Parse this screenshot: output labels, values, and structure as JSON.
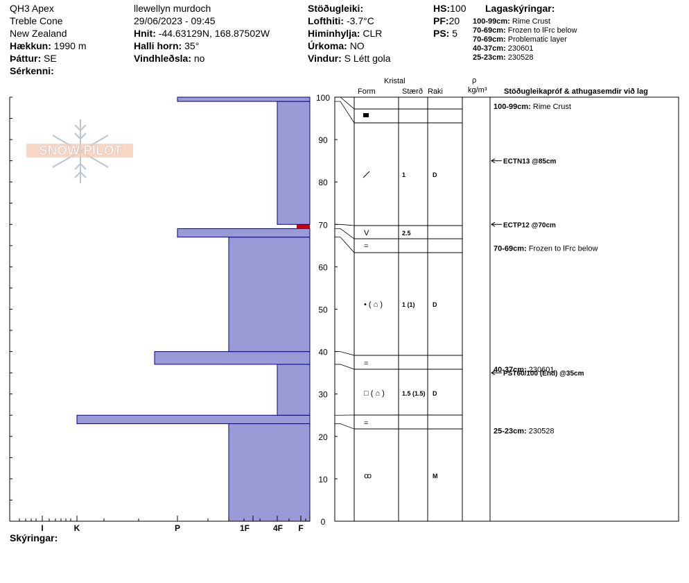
{
  "header": {
    "site": "QH3 Apex",
    "area": "Treble Cone",
    "country": "New Zealand",
    "elevation_label": "Hækkun:",
    "elevation": "1990 m",
    "aspect_label": "Þáttur:",
    "aspect": "SE",
    "features_label": "Sérkenni:",
    "observer": "llewellyn murdoch",
    "datetime": "29/06/2023 - 09:45",
    "coords_label": "Hnit:",
    "coords": "-44.63129N, 168.87502W",
    "slope_label": "Halli horn:",
    "slope": "35°",
    "wind_loading_label": "Vindhleðsla:",
    "wind_loading": "no",
    "stability_label": "Stöðugleiki:",
    "air_temp_label": "Lofthiti:",
    "air_temp": "-3.7°C",
    "sky_label": "Himinhylja:",
    "sky": "CLR",
    "precip_label": "Úrkoma:",
    "precip": "NO",
    "wind_label": "Vindur:",
    "wind": "S Létt gola",
    "hs_label": "HS:",
    "hs": "100",
    "pf_label": "PF:",
    "pf": "20",
    "ps_label": "PS:",
    "ps": "5",
    "legend_title": "Lagaskýringar:",
    "legend": [
      {
        "range": "100-99cm:",
        "text": "Rime Crust"
      },
      {
        "range": "70-69cm:",
        "text": "Frozen to lFrc below"
      },
      {
        "range": "70-69cm:",
        "text": "Problematic layer"
      },
      {
        "range": "40-37cm:",
        "text": "230601"
      },
      {
        "range": "25-23cm:",
        "text": "230528"
      }
    ]
  },
  "columns": {
    "crystal": "Kristal",
    "form": "Form",
    "size": "Stærð",
    "moisture": "Raki",
    "rho": "ρ",
    "density_unit": "kg/m³",
    "tests_header": "Stöðugleikapróf & athugasemdir við lag"
  },
  "footer": {
    "notes_label": "Skýringar:"
  },
  "logo_text": "SNOW PILOT",
  "colors": {
    "bar_fill": "#9a9ad6",
    "bar_stroke": "#00008b",
    "marker": "#cc0000"
  },
  "chart_data": {
    "type": "bar",
    "orientation": "horizontal",
    "x_axis": {
      "ticks": [
        "I",
        "K",
        "P",
        "1F",
        "4F",
        "F"
      ]
    },
    "y_axis": {
      "min": 0,
      "max": 100,
      "ticks": [
        0,
        10,
        20,
        30,
        40,
        50,
        60,
        70,
        80,
        90,
        100
      ]
    },
    "hardness_profile": [
      {
        "bottom": 0,
        "top": 23,
        "hardness": "1F"
      },
      {
        "bottom": 23,
        "top": 25,
        "hardness": "K"
      },
      {
        "bottom": 25,
        "top": 37,
        "hardness": "4F"
      },
      {
        "bottom": 37,
        "top": 40,
        "hardness": "P-"
      },
      {
        "bottom": 40,
        "top": 67,
        "hardness": "1F"
      },
      {
        "bottom": 67,
        "top": 69,
        "hardness": "P"
      },
      {
        "bottom": 69,
        "top": 70,
        "hardness": "F",
        "problematic": true
      },
      {
        "bottom": 70,
        "top": 99,
        "hardness": "4F-"
      },
      {
        "bottom": 99,
        "top": 100,
        "hardness": "P"
      }
    ],
    "layers": [
      {
        "top": 100,
        "bottom": 99,
        "form": "■",
        "size": "",
        "moisture": ""
      },
      {
        "top": 99,
        "bottom": 70,
        "form": "⁄",
        "size": "1",
        "moisture": "D"
      },
      {
        "top": 70,
        "bottom": 69,
        "form": "V",
        "size": "2.5",
        "moisture": ""
      },
      {
        "top": 69,
        "bottom": 67,
        "form": "",
        "size": "",
        "moisture": ""
      },
      {
        "top": 67,
        "bottom": 40,
        "form": "•  ( ⌂ )",
        "size": "1 (1)",
        "moisture": "D"
      },
      {
        "top": 40,
        "bottom": 37,
        "form": "=",
        "size": "",
        "moisture": ""
      },
      {
        "top": 37,
        "bottom": 25,
        "form": "□  ( ⌂ )",
        "size": "1.5 (1.5)",
        "moisture": "D"
      },
      {
        "top": 25,
        "bottom": 23,
        "form": "=",
        "size": "",
        "moisture": ""
      },
      {
        "top": 23,
        "bottom": 0,
        "form": "ꝏ",
        "size": "",
        "moisture": "M"
      }
    ],
    "extra_form_rows": [
      {
        "at": 68,
        "form": "="
      }
    ],
    "tests": [
      {
        "depth": 85,
        "label": "ECTN13 @85cm"
      },
      {
        "depth": 70,
        "label": "ECTP12 @70cm"
      },
      {
        "depth": 35,
        "label": "PST60/100 (End) @35cm"
      }
    ],
    "comments": [
      {
        "depth": 99.5,
        "range": "100-99cm:",
        "text": "Rime Crust"
      },
      {
        "depth": 66,
        "range": "70-69cm:",
        "text": "Frozen to lFrc below"
      },
      {
        "depth": 37.5,
        "range": "40-37cm:",
        "text": "230601"
      },
      {
        "depth": 23,
        "range": "25-23cm:",
        "text": "230528"
      }
    ]
  }
}
